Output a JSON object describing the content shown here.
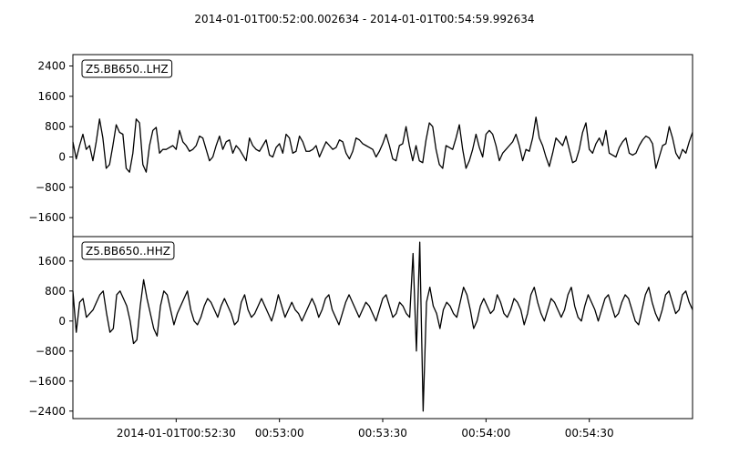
{
  "chart_data": {
    "type": "line",
    "title": "2014-01-01T00:52:00.002634  -  2014-01-01T00:54:59.992634",
    "x_tick_labels": [
      "2014-01-01T00:52:30",
      "00:53:00",
      "00:53:30",
      "00:54:00",
      "00:54:30"
    ],
    "x_tick_times": [
      "00:52:30",
      "00:53:00",
      "00:53:30",
      "00:54:00",
      "00:54:30"
    ],
    "x_start": "2014-01-01T00:52:00.002634",
    "x_end": "2014-01-01T00:54:59.992634",
    "panels": [
      {
        "label": "Z5.BB650..LHZ",
        "ylim": [
          -2100,
          2700
        ],
        "yticks": [
          2400,
          1600,
          800,
          0,
          -800,
          -1600
        ],
        "ytick_labels": [
          "2400",
          "1600",
          "800",
          "0",
          "−800",
          "−1600"
        ],
        "series": [
          {
            "color": "#000000",
            "values": [
              400,
              -50,
              300,
              600,
              200,
              300,
              -100,
              400,
              1000,
              500,
              -300,
              -200,
              300,
              850,
              650,
              600,
              -300,
              -400,
              100,
              1000,
              900,
              -200,
              -400,
              300,
              700,
              780,
              100,
              200,
              200,
              250,
              300,
              200,
              700,
              400,
              300,
              150,
              200,
              300,
              550,
              500,
              200,
              -100,
              0,
              300,
              550,
              200,
              400,
              450,
              100,
              300,
              200,
              50,
              -100,
              500,
              300,
              200,
              150,
              300,
              450,
              50,
              0,
              250,
              350,
              100,
              600,
              500,
              100,
              150,
              550,
              400,
              150,
              150,
              200,
              300,
              0,
              200,
              400,
              300,
              200,
              250,
              450,
              400,
              100,
              -50,
              150,
              500,
              450,
              350,
              300,
              250,
              200,
              0,
              150,
              350,
              600,
              300,
              -50,
              -100,
              300,
              350,
              800,
              300,
              -100,
              300,
              -100,
              -150,
              450,
              900,
              800,
              200,
              -200,
              -300,
              300,
              250,
              200,
              500,
              850,
              200,
              -300,
              -100,
              200,
              600,
              250,
              0,
              600,
              700,
              600,
              300,
              -100,
              100,
              200,
              300,
              400,
              600,
              300,
              -100,
              200,
              150,
              500,
              1050,
              500,
              300,
              0,
              -250,
              100,
              500,
              400,
              300,
              550,
              200,
              -150,
              -100,
              200,
              650,
              900,
              200,
              100,
              350,
              500,
              300,
              700,
              100,
              50,
              0,
              250,
              400,
              500,
              100,
              50,
              100,
              300,
              450,
              550,
              500,
              350,
              -300,
              0,
              300,
              350,
              800,
              500,
              100,
              -50,
              200,
              100,
              400,
              650
            ]
          }
        ]
      },
      {
        "label": "Z5.BB650..HHZ",
        "ylim": [
          -2600,
          2250
        ],
        "yticks": [
          1600,
          800,
          0,
          -800,
          -1600,
          -2400
        ],
        "ytick_labels": [
          "1600",
          "800",
          "0",
          "−800",
          "−1600",
          "−2400"
        ],
        "series": [
          {
            "color": "#000000",
            "values": [
              800,
              -300,
              500,
              600,
              100,
              200,
              300,
              500,
              700,
              800,
              200,
              -300,
              -200,
              700,
              800,
              600,
              400,
              0,
              -600,
              -500,
              400,
              1100,
              600,
              200,
              -200,
              -400,
              400,
              800,
              700,
              300,
              -100,
              200,
              400,
              600,
              800,
              300,
              0,
              -100,
              100,
              400,
              600,
              500,
              300,
              100,
              400,
              600,
              400,
              200,
              -100,
              0,
              500,
              700,
              300,
              100,
              200,
              400,
              600,
              400,
              200,
              0,
              300,
              700,
              400,
              100,
              300,
              500,
              300,
              200,
              0,
              200,
              400,
              600,
              400,
              100,
              300,
              600,
              700,
              300,
              100,
              -100,
              200,
              500,
              700,
              500,
              300,
              100,
              300,
              500,
              400,
              200,
              0,
              300,
              600,
              700,
              400,
              100,
              200,
              500,
              400,
              200,
              100,
              1800,
              -800,
              2100,
              -2400,
              500,
              900,
              400,
              200,
              -200,
              300,
              500,
              400,
              200,
              100,
              500,
              900,
              700,
              300,
              -200,
              0,
              400,
              600,
              400,
              200,
              300,
              700,
              500,
              200,
              100,
              300,
              600,
              500,
              300,
              -100,
              200,
              700,
              900,
              500,
              200,
              0,
              300,
              600,
              500,
              300,
              100,
              300,
              700,
              900,
              400,
              100,
              0,
              400,
              700,
              500,
              300,
              0,
              300,
              600,
              700,
              400,
              100,
              200,
              500,
              700,
              600,
              300,
              0,
              -100,
              300,
              700,
              900,
              500,
              200,
              0,
              300,
              700,
              800,
              500,
              200,
              300,
              700,
              800,
              500,
              300
            ]
          }
        ]
      }
    ]
  }
}
